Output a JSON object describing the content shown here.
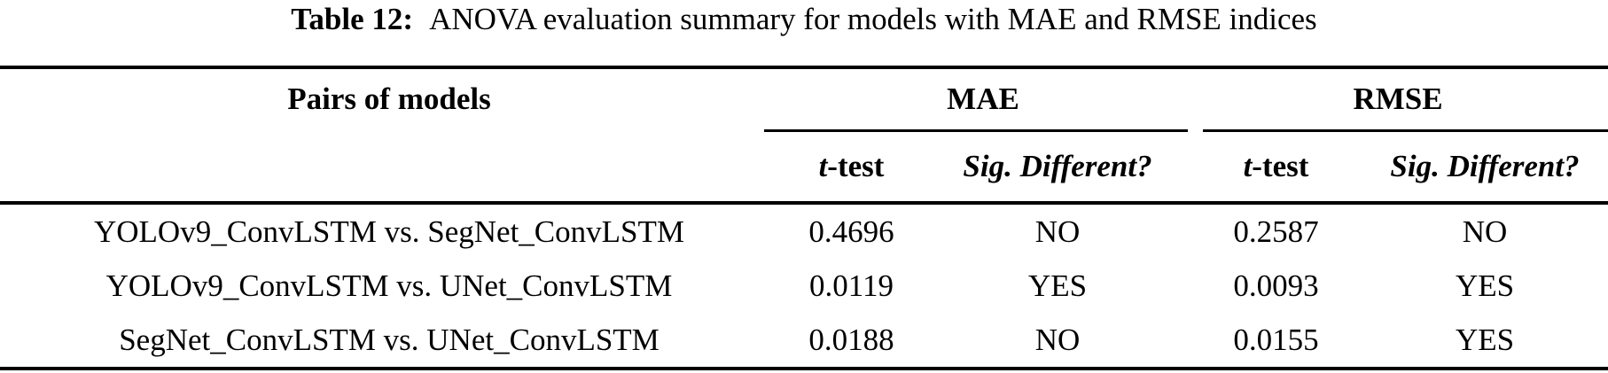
{
  "caption": {
    "label": "Table 12:",
    "text": "ANOVA evaluation summary for models with MAE and RMSE indices"
  },
  "table": {
    "pairs_header": "Pairs of models",
    "groups": [
      {
        "label": "MAE"
      },
      {
        "label": "RMSE"
      }
    ],
    "subheaders": {
      "t_italic": "t",
      "t_rest": "-test",
      "sig": "Sig. Different?"
    },
    "rows": [
      {
        "pair": "YOLOv9_ConvLSTM vs. SegNet_ConvLSTM",
        "mae_t_test": "0.4696",
        "mae_sig_different": "NO",
        "rmse_t_test": "0.2587",
        "rmse_sig_different": "NO"
      },
      {
        "pair": "YOLOv9_ConvLSTM vs. UNet_ConvLSTM",
        "mae_t_test": "0.0119",
        "mae_sig_different": "YES",
        "rmse_t_test": "0.0093",
        "rmse_sig_different": "YES"
      },
      {
        "pair": "SegNet_ConvLSTM vs. UNet_ConvLSTM",
        "mae_t_test": "0.0188",
        "mae_sig_different": "NO",
        "rmse_t_test": "0.0155",
        "rmse_sig_different": "YES"
      }
    ],
    "colors": {
      "text": "#000000",
      "background": "#ffffff",
      "rule": "#000000"
    }
  }
}
